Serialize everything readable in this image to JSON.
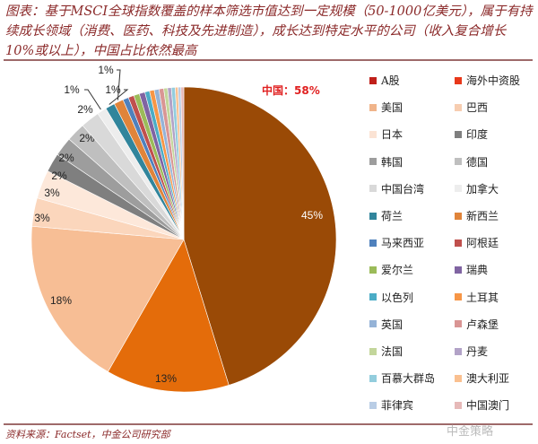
{
  "title": "图表：基于MSCI全球指数覆盖的样本筛选市值达到一定规模（50-1000亿美元），属于有持续成长领域（消费、医药、科技及先进制造），成长达到特定水平的公司（收入复合增长10%或以上），中国占比依然最高",
  "source": "资料来源：Factset，中金公司研究部",
  "watermark": "中金策略",
  "chart_data": {
    "type": "pie",
    "title": "中国占比",
    "annotation": "中国：58%",
    "legend_position": "right",
    "slices": [
      {
        "label": "A股",
        "value": 45,
        "data_label": "45%",
        "color": "#9A4A06",
        "legend_color": "#C0201A"
      },
      {
        "label": "海外中资股",
        "value": 13,
        "data_label": "13%",
        "color": "#E46C0A",
        "legend_color": "#E8381A"
      },
      {
        "label": "美国",
        "value": 18,
        "data_label": "18%",
        "color": "#F7BE95",
        "legend_color": "#F0B48A"
      },
      {
        "label": "巴西",
        "value": 3,
        "data_label": "3%",
        "color": "#FBD6BC",
        "legend_color": "#F7CDB0"
      },
      {
        "label": "日本",
        "value": 3,
        "data_label": "3%",
        "color": "#FDE8DA",
        "legend_color": "#FBE3D4"
      },
      {
        "label": "印度",
        "value": 2,
        "data_label": "2%",
        "color": "#7F7F7F",
        "legend_color": "#7F7F7F"
      },
      {
        "label": "韩国",
        "value": 2,
        "data_label": "2%",
        "color": "#9D9D9D",
        "legend_color": "#9D9D9D"
      },
      {
        "label": "德国",
        "value": 2,
        "data_label": "2%",
        "color": "#BFBFBF",
        "legend_color": "#BFBFBF"
      },
      {
        "label": "中国台湾",
        "value": 2,
        "data_label": "2%",
        "color": "#D9D9D9",
        "legend_color": "#D9D9D9"
      },
      {
        "label": "加拿大",
        "value": 1,
        "data_label": "1%",
        "color": "#EDEDED",
        "legend_color": "#EDEDED"
      },
      {
        "label": "荷兰",
        "value": 1,
        "data_label": "1%",
        "color": "#31859C",
        "legend_color": "#31859C"
      },
      {
        "label": "新西兰",
        "value": 1,
        "data_label": "1%",
        "color": "#E0843A",
        "legend_color": "#E0843A"
      },
      {
        "label": "马来西亚",
        "value": 0.6,
        "data_label": "",
        "color": "#4F81BD",
        "legend_color": "#4F81BD"
      },
      {
        "label": "阿根廷",
        "value": 0.6,
        "data_label": "",
        "color": "#C0504D",
        "legend_color": "#C0504D"
      },
      {
        "label": "爱尔兰",
        "value": 0.6,
        "data_label": "",
        "color": "#9BBB59",
        "legend_color": "#9BBB59"
      },
      {
        "label": "瑞典",
        "value": 0.6,
        "data_label": "",
        "color": "#8064A2",
        "legend_color": "#8064A2"
      },
      {
        "label": "以色列",
        "value": 0.5,
        "data_label": "",
        "color": "#4BACC6",
        "legend_color": "#4BACC6"
      },
      {
        "label": "土耳其",
        "value": 0.5,
        "data_label": "",
        "color": "#F79646",
        "legend_color": "#F79646"
      },
      {
        "label": "英国",
        "value": 0.5,
        "data_label": "",
        "color": "#95B3D7",
        "legend_color": "#95B3D7"
      },
      {
        "label": "卢森堡",
        "value": 0.5,
        "data_label": "",
        "color": "#D99594",
        "legend_color": "#D99594"
      },
      {
        "label": "法国",
        "value": 0.4,
        "data_label": "",
        "color": "#C3D69B",
        "legend_color": "#C3D69B"
      },
      {
        "label": "丹麦",
        "value": 0.4,
        "data_label": "",
        "color": "#B2A2C7",
        "legend_color": "#B2A2C7"
      },
      {
        "label": "百慕大群岛",
        "value": 0.4,
        "data_label": "",
        "color": "#93CDDD",
        "legend_color": "#93CDDD"
      },
      {
        "label": "澳大利亚",
        "value": 0.3,
        "data_label": "",
        "color": "#FAC090",
        "legend_color": "#FAC090"
      },
      {
        "label": "菲律宾",
        "value": 0.3,
        "data_label": "",
        "color": "#B9CDE5",
        "legend_color": "#B9CDE5"
      },
      {
        "label": "中国澳门",
        "value": 0.3,
        "data_label": "",
        "color": "#E6B9B8",
        "legend_color": "#E6B9B8"
      }
    ]
  }
}
